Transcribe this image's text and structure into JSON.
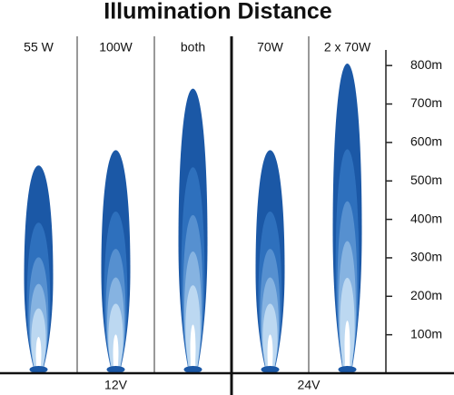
{
  "chart_data": {
    "type": "beam",
    "title": "Illumination Distance",
    "groups": [
      {
        "name": "12V",
        "categories": [
          "55 W",
          "100W",
          "both"
        ],
        "values": [
          540,
          580,
          740
        ]
      },
      {
        "name": "24V",
        "categories": [
          "70W",
          "2 x 70W"
        ],
        "values": [
          580,
          805
        ]
      }
    ],
    "ylim": [
      0,
      850
    ],
    "yticks": [
      {
        "value": 100,
        "label": "100m"
      },
      {
        "value": 200,
        "label": "200m"
      },
      {
        "value": 300,
        "label": "300m"
      },
      {
        "value": 400,
        "label": "400m"
      },
      {
        "value": 500,
        "label": "500m"
      },
      {
        "value": 600,
        "label": "600m"
      },
      {
        "value": 700,
        "label": "700m"
      },
      {
        "value": 800,
        "label": "800m"
      }
    ],
    "layer_colors": [
      "#1b58a6",
      "#2e70bd",
      "#5690d0",
      "#86b3e1",
      "#bcd8f1",
      "#ffffff"
    ]
  }
}
